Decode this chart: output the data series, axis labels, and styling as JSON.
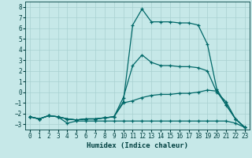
{
  "xlabel": "Humidex (Indice chaleur)",
  "xlim": [
    -0.5,
    23.5
  ],
  "ylim": [
    -3.5,
    8.5
  ],
  "xticks": [
    0,
    1,
    2,
    3,
    4,
    5,
    6,
    7,
    8,
    9,
    10,
    11,
    12,
    13,
    14,
    15,
    16,
    17,
    18,
    19,
    20,
    21,
    22,
    23
  ],
  "yticks": [
    -3,
    -2,
    -1,
    0,
    1,
    2,
    3,
    4,
    5,
    6,
    7,
    8
  ],
  "background_color": "#c6e8e8",
  "grid_color": "#a8d0d0",
  "line_color": "#006868",
  "lines": [
    {
      "x": [
        0,
        1,
        2,
        3,
        4,
        5,
        6,
        7,
        8,
        9,
        10,
        11,
        12,
        13,
        14,
        15,
        16,
        17,
        18,
        19,
        20,
        21,
        22,
        23
      ],
      "y": [
        -2.3,
        -2.5,
        -2.2,
        -2.3,
        -2.5,
        -2.6,
        -2.5,
        -2.5,
        -2.4,
        -2.3,
        -0.9,
        6.3,
        7.8,
        6.6,
        6.6,
        6.6,
        6.5,
        6.5,
        6.3,
        4.5,
        0.3,
        -1.2,
        -2.5,
        -3.3
      ]
    },
    {
      "x": [
        0,
        1,
        2,
        3,
        4,
        5,
        6,
        7,
        8,
        9,
        10,
        11,
        12,
        13,
        14,
        15,
        16,
        17,
        18,
        19,
        20,
        21,
        22,
        23
      ],
      "y": [
        -2.3,
        -2.5,
        -2.2,
        -2.3,
        -2.5,
        -2.6,
        -2.5,
        -2.5,
        -2.4,
        -2.3,
        -0.5,
        2.5,
        3.5,
        2.8,
        2.5,
        2.5,
        2.4,
        2.4,
        2.3,
        2.0,
        0.0,
        -0.9,
        -2.5,
        -3.3
      ]
    },
    {
      "x": [
        0,
        1,
        2,
        3,
        4,
        5,
        6,
        7,
        8,
        9,
        10,
        11,
        12,
        13,
        14,
        15,
        16,
        17,
        18,
        19,
        20,
        21,
        22,
        23
      ],
      "y": [
        -2.3,
        -2.5,
        -2.2,
        -2.3,
        -2.5,
        -2.6,
        -2.5,
        -2.5,
        -2.4,
        -2.3,
        -1.0,
        -0.8,
        -0.5,
        -0.3,
        -0.2,
        -0.2,
        -0.1,
        -0.1,
        0.0,
        0.2,
        0.1,
        -1.2,
        -2.5,
        -3.3
      ]
    },
    {
      "x": [
        0,
        1,
        2,
        3,
        4,
        5,
        6,
        7,
        8,
        9,
        10,
        11,
        12,
        13,
        14,
        15,
        16,
        17,
        18,
        19,
        20,
        21,
        22,
        23
      ],
      "y": [
        -2.3,
        -2.5,
        -2.2,
        -2.3,
        -2.9,
        -2.7,
        -2.7,
        -2.7,
        -2.7,
        -2.7,
        -2.7,
        -2.7,
        -2.7,
        -2.7,
        -2.7,
        -2.7,
        -2.7,
        -2.7,
        -2.7,
        -2.7,
        -2.7,
        -2.7,
        -2.9,
        -3.3
      ]
    }
  ]
}
